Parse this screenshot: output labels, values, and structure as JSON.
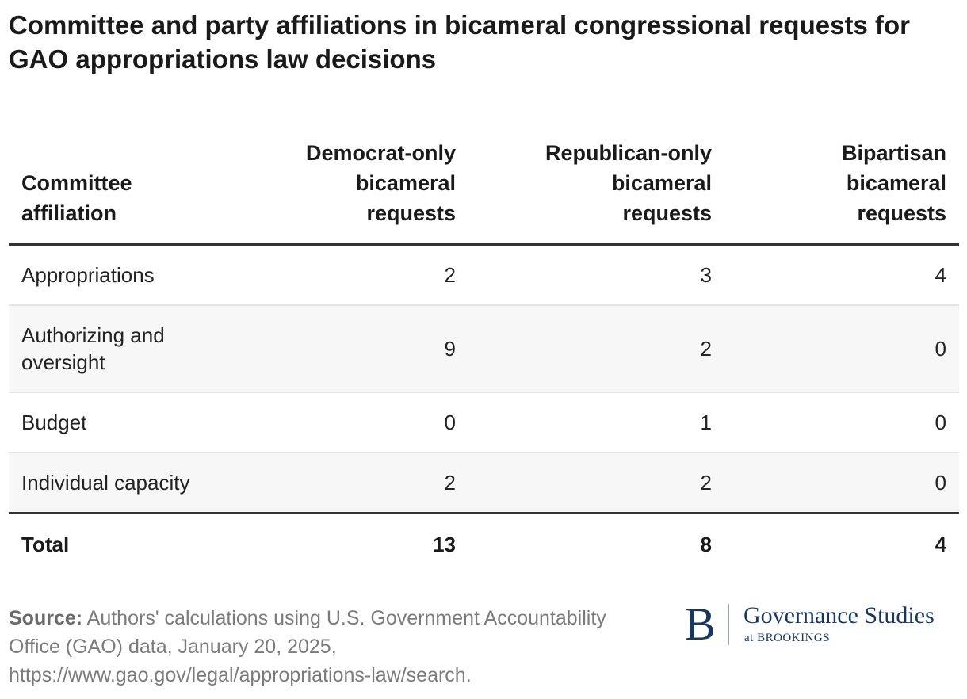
{
  "title": "Committee and party affiliations in bicameral congressional requests for GAO appropriations law decisions",
  "chart_data": {
    "type": "table",
    "title": "Committee and party affiliations in bicameral congressional requests for GAO appropriations law decisions",
    "columns": [
      {
        "lines": [
          "Committee",
          "affiliation"
        ]
      },
      {
        "lines": [
          "Democrat-only",
          "bicameral",
          "requests"
        ]
      },
      {
        "lines": [
          "Republican-only",
          "bicameral",
          "requests"
        ]
      },
      {
        "lines": [
          "Bipartisan",
          "bicameral",
          "requests"
        ]
      }
    ],
    "rows": [
      {
        "lines": [
          "Appropriations"
        ],
        "values": [
          "2",
          "3",
          "4"
        ]
      },
      {
        "lines": [
          "Authorizing and",
          "oversight"
        ],
        "values": [
          "9",
          "2",
          "0"
        ]
      },
      {
        "lines": [
          "Budget"
        ],
        "values": [
          "0",
          "1",
          "0"
        ]
      },
      {
        "lines": [
          "Individual capacity"
        ],
        "values": [
          "2",
          "2",
          "0"
        ]
      }
    ],
    "total": {
      "label": "Total",
      "values": [
        "13",
        "8",
        "4"
      ]
    }
  },
  "source": {
    "label": "Source:",
    "text": " Authors' calculations using U.S. Government Accountability Office (GAO) data, January 20, 2025, https://www.gao.gov/legal/appropriations-law/search."
  },
  "logo": {
    "letter": "B",
    "name": "Governance Studies",
    "subtitle": "at BROOKINGS"
  },
  "colors": {
    "text": "#1a1a1a",
    "muted_text": "#7b7b7b",
    "rule": "#333333",
    "row_divider": "#e3e3e3",
    "row_alt_background": "#f7f7f7",
    "brand": "#17375e"
  }
}
